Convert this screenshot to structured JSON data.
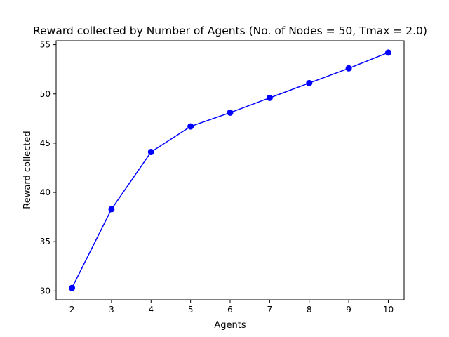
{
  "chart_data": {
    "type": "line",
    "title": "Reward collected by Number of Agents (No. of Nodes = 50, Tmax = 2.0)",
    "xlabel": "Agents",
    "ylabel": "Reward collected",
    "x": [
      2,
      3,
      4,
      5,
      6,
      7,
      8,
      9,
      10
    ],
    "series": [
      {
        "values": [
          30.3,
          38.3,
          44.1,
          46.7,
          48.1,
          49.6,
          51.1,
          52.6,
          54.2
        ],
        "color": "#0000ff",
        "marker": "circle"
      }
    ],
    "xlim": [
      1.6,
      10.4
    ],
    "ylim": [
      29.1,
      55.4
    ],
    "xticks": [
      2,
      3,
      4,
      5,
      6,
      7,
      8,
      9,
      10
    ],
    "yticks": [
      30,
      35,
      40,
      45,
      50,
      55
    ],
    "grid": false,
    "legend": "none"
  }
}
